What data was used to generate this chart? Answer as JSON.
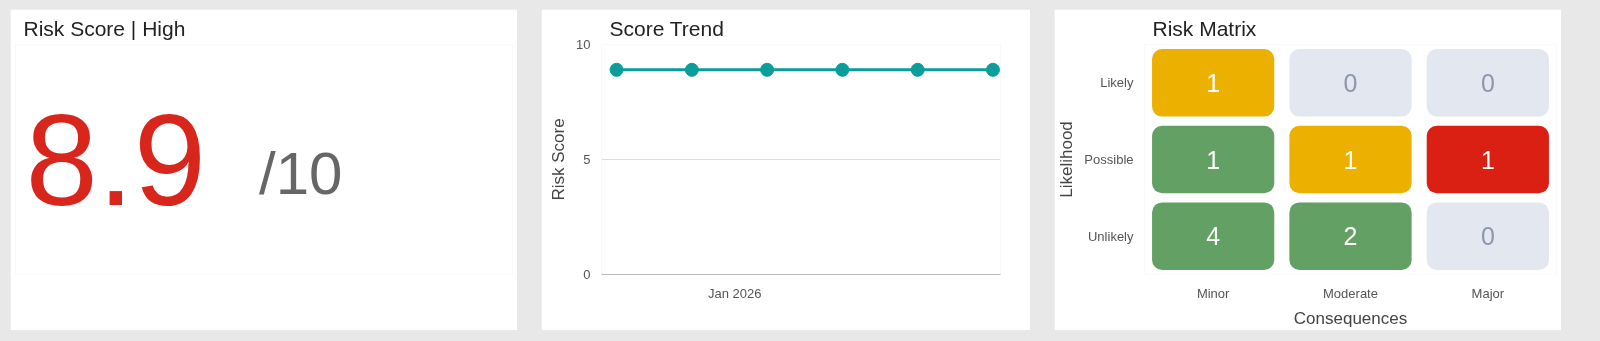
{
  "chart_data": [
    {
      "type": "other",
      "title": "Risk Score | High",
      "values": [
        8.9
      ],
      "data_labels": true,
      "annotations": [
        "/10"
      ]
    },
    {
      "type": "line",
      "title": "Score Trend",
      "ylabel": "Risk Score",
      "categories": [
        null,
        null,
        null,
        null,
        null,
        null
      ],
      "series": [
        {
          "color": "#0a9e9a",
          "values": [
            8.9,
            8.9,
            8.9,
            8.9,
            8.9,
            8.9
          ]
        }
      ],
      "annotations": [
        "Jan 2026"
      ],
      "ylim": [
        0,
        10
      ],
      "yticks": [
        0,
        5,
        10
      ],
      "grid": "y",
      "marker": "circle",
      "line_style": "solid"
    },
    {
      "type": "heatmap",
      "title": "Risk Matrix",
      "xlabel": "Consequences",
      "ylabel": "Likelihood",
      "categories": [
        "Minor",
        "Moderate",
        "Major"
      ],
      "y_categories": [
        "Likely",
        "Possible",
        "Unlikely"
      ],
      "cells": [
        [
          1,
          0,
          0
        ],
        [
          1,
          1,
          1
        ],
        [
          4,
          2,
          0
        ]
      ],
      "colors": [
        [
          "#ecb000",
          "#e3e7f0",
          "#e3e7f0"
        ],
        [
          "#62a063",
          "#ecb000",
          "#d92012"
        ],
        [
          "#62a063",
          "#62a063",
          "#e3e7f0"
        ]
      ],
      "data_labels": true
    }
  ]
}
